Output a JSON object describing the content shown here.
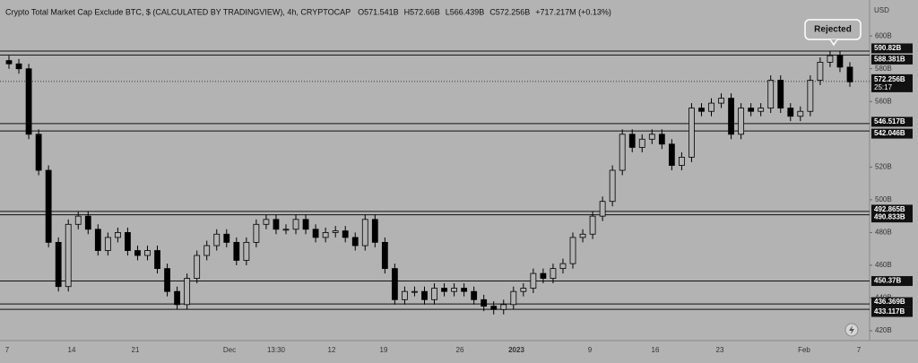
{
  "chart_data": {
    "type": "candlestick",
    "title": "Crypto Total Market Cap Exclude BTC, $ (CALCULATED BY TRADINGVIEW), 4h, CRYPTOCAP",
    "header_values": [
      "O571.541B",
      "H572.66B",
      "L566.439B",
      "C572.256B",
      "+717.217M (+0.13%)"
    ],
    "axis_unit": "USD",
    "x_labels": [
      "7",
      "14",
      "21",
      "Dec",
      "13:30",
      "12",
      "19",
      "26",
      "2023",
      "9",
      "16",
      "23",
      "Feb",
      "7"
    ],
    "open": [
      585,
      583,
      580,
      540,
      518,
      474,
      447,
      485,
      490,
      482,
      469,
      477,
      480,
      469,
      466,
      469,
      458,
      444,
      436,
      452,
      466,
      472,
      479,
      474,
      463,
      474,
      485,
      488,
      482,
      482,
      488,
      482,
      477,
      480,
      481,
      477,
      472,
      488,
      474,
      458,
      439,
      444,
      444,
      439,
      446,
      444,
      446,
      444,
      439,
      435,
      433,
      436,
      444,
      446,
      455,
      452,
      458,
      461,
      477,
      479,
      490,
      499,
      518,
      540,
      532,
      537,
      540,
      534,
      521,
      526,
      556,
      554,
      559,
      562,
      540,
      556,
      554,
      556,
      573,
      556,
      551,
      554,
      573,
      584,
      588,
      581
    ],
    "high": [
      588,
      586,
      583,
      543,
      521,
      477,
      488,
      493,
      493,
      485,
      480,
      483,
      483,
      472,
      472,
      472,
      461,
      447,
      455,
      469,
      475,
      482,
      482,
      477,
      477,
      488,
      491,
      491,
      485,
      491,
      491,
      485,
      483,
      484,
      484,
      480,
      491,
      491,
      477,
      461,
      447,
      447,
      447,
      449,
      449,
      449,
      449,
      447,
      442,
      438,
      439,
      447,
      449,
      458,
      458,
      461,
      464,
      480,
      482,
      493,
      502,
      521,
      543,
      543,
      540,
      543,
      543,
      537,
      529,
      559,
      559,
      562,
      565,
      565,
      559,
      559,
      559,
      576,
      576,
      559,
      557,
      576,
      587,
      591,
      591,
      584
    ],
    "low": [
      580,
      577,
      537,
      515,
      471,
      444,
      444,
      482,
      479,
      466,
      466,
      474,
      466,
      463,
      463,
      455,
      441,
      433,
      433,
      449,
      463,
      469,
      471,
      460,
      460,
      471,
      482,
      479,
      479,
      479,
      479,
      474,
      474,
      477,
      474,
      469,
      469,
      471,
      455,
      436,
      436,
      441,
      436,
      436,
      441,
      441,
      441,
      436,
      432,
      430,
      430,
      433,
      441,
      443,
      449,
      449,
      455,
      458,
      474,
      476,
      487,
      496,
      515,
      529,
      529,
      534,
      531,
      518,
      518,
      523,
      551,
      551,
      556,
      537,
      537,
      551,
      551,
      553,
      553,
      548,
      548,
      551,
      570,
      581,
      578,
      569
    ],
    "close": [
      583,
      580,
      540,
      518,
      474,
      447,
      485,
      490,
      482,
      469,
      477,
      480,
      469,
      466,
      469,
      458,
      444,
      436,
      452,
      466,
      472,
      479,
      474,
      463,
      474,
      485,
      488,
      482,
      482,
      488,
      482,
      477,
      480,
      481,
      477,
      472,
      488,
      474,
      458,
      439,
      444,
      444,
      439,
      446,
      444,
      446,
      444,
      439,
      435,
      433,
      436,
      444,
      446,
      455,
      452,
      458,
      461,
      477,
      479,
      490,
      499,
      518,
      540,
      532,
      537,
      540,
      534,
      521,
      526,
      556,
      554,
      559,
      562,
      540,
      556,
      554,
      556,
      573,
      556,
      551,
      554,
      573,
      584,
      588,
      581,
      572
    ],
    "color": "#000000",
    "ylim": [
      414,
      622
    ],
    "yticks": [
      {
        "value": 420,
        "label": "420B"
      },
      {
        "value": 440,
        "label": "440B"
      },
      {
        "value": 460,
        "label": "460B"
      },
      {
        "value": 480,
        "label": "480B"
      },
      {
        "value": 500,
        "label": "500B"
      },
      {
        "value": 520,
        "label": "520B"
      },
      {
        "value": 560,
        "label": "560B"
      },
      {
        "value": 580,
        "label": "580B"
      },
      {
        "value": 600,
        "label": "600B"
      }
    ],
    "levels": [
      {
        "value": 590.82,
        "label": "590.82B"
      },
      {
        "value": 588.381,
        "label": "588.381B"
      },
      {
        "value": 546.517,
        "label": "546.517B"
      },
      {
        "value": 542.046,
        "label": "542.046B"
      },
      {
        "value": 492.865,
        "label": "492.865B"
      },
      {
        "value": 490.833,
        "label": "490.833B"
      },
      {
        "value": 450.37,
        "label": "450.37B"
      },
      {
        "value": 436.369,
        "label": "436.369B"
      },
      {
        "value": 433.117,
        "label": "433.117B"
      }
    ],
    "last_price": {
      "value": 572.256,
      "label": "572.256B"
    },
    "countdown": "25:17",
    "annotation": "Rejected"
  }
}
